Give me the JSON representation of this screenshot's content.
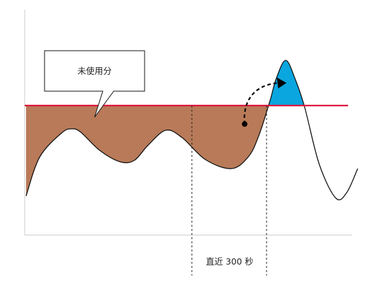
{
  "callout": {
    "text": "未使用分"
  },
  "window": {
    "label": "直近 300 秒"
  },
  "colors": {
    "under_threshold_fill": "#b87a58",
    "over_threshold_fill": "#0aa6df",
    "threshold_line": "#e0143c",
    "curve": "#111111",
    "axes": "#d4d4d4",
    "dashed_lines": "#222222"
  }
}
